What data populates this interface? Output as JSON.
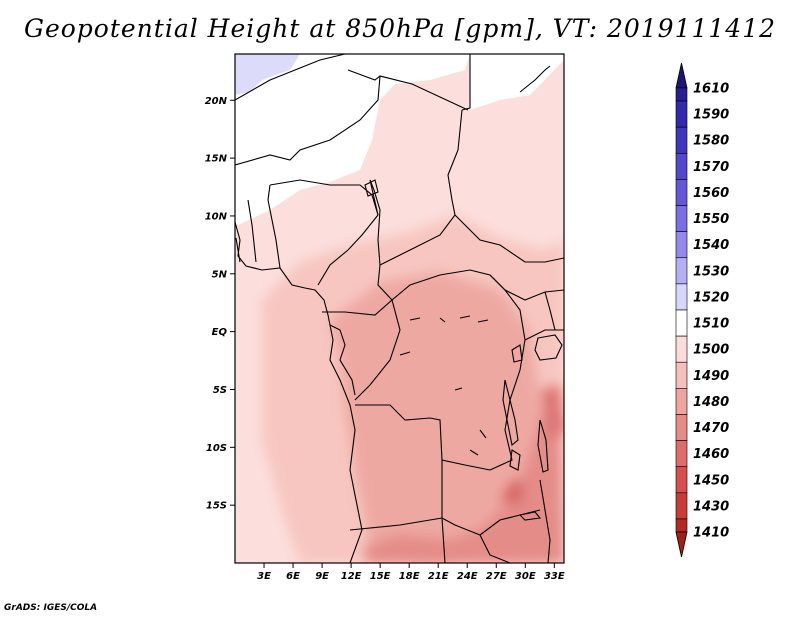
{
  "title": "Geopotential Height at 850hPa [gpm], VT: 2019111412",
  "credit": "GrADS: IGES/COLA",
  "map": {
    "lon_range": [
      0,
      34
    ],
    "lat_range": [
      -20,
      24
    ],
    "lat_ticks": [
      {
        "value": 20,
        "label": "20N"
      },
      {
        "value": 15,
        "label": "15N"
      },
      {
        "value": 10,
        "label": "10N"
      },
      {
        "value": 5,
        "label": "5N"
      },
      {
        "value": 0,
        "label": "EQ"
      },
      {
        "value": -5,
        "label": "5S"
      },
      {
        "value": -10,
        "label": "10S"
      },
      {
        "value": -15,
        "label": "15S"
      }
    ],
    "lon_ticks": [
      {
        "value": 3,
        "label": "3E"
      },
      {
        "value": 6,
        "label": "6E"
      },
      {
        "value": 9,
        "label": "9E"
      },
      {
        "value": 12,
        "label": "12E"
      },
      {
        "value": 15,
        "label": "15E"
      },
      {
        "value": 18,
        "label": "18E"
      },
      {
        "value": 21,
        "label": "21E"
      },
      {
        "value": 24,
        "label": "24E"
      },
      {
        "value": 27,
        "label": "27E"
      },
      {
        "value": 30,
        "label": "30E"
      },
      {
        "value": 33,
        "label": "33E"
      }
    ]
  },
  "colorbar": {
    "levels": [
      {
        "label": "1610",
        "color": "#281e96"
      },
      {
        "label": "1590",
        "color": "#322aaa"
      },
      {
        "label": "1580",
        "color": "#3c37be"
      },
      {
        "label": "1570",
        "color": "#5048cd"
      },
      {
        "label": "1560",
        "color": "#6458d8"
      },
      {
        "label": "1550",
        "color": "#7a6ee4"
      },
      {
        "label": "1540",
        "color": "#9488ee"
      },
      {
        "label": "1530",
        "color": "#b4aef4"
      },
      {
        "label": "1520",
        "color": "#d6d6fa"
      },
      {
        "label": "1510",
        "color": "#ffffff"
      },
      {
        "label": "1500",
        "color": "#fbdcd8"
      },
      {
        "label": "1490",
        "color": "#f6c0ba"
      },
      {
        "label": "1480",
        "color": "#f0a49e"
      },
      {
        "label": "1470",
        "color": "#e88a86"
      },
      {
        "label": "1460",
        "color": "#e06c6a"
      },
      {
        "label": "1450",
        "color": "#d84e4c"
      },
      {
        "label": "1430",
        "color": "#cc3a36"
      },
      {
        "label": "1410",
        "color": "#b42a22"
      }
    ],
    "top_arrow_color": "#1e1478",
    "bottom_arrow_color": "#a02018"
  }
}
